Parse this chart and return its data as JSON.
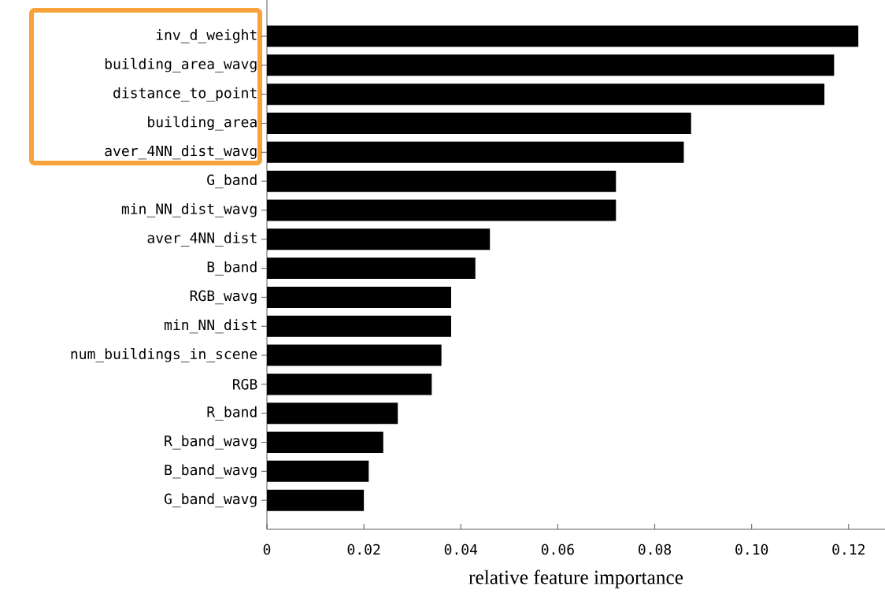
{
  "chart_data": {
    "type": "bar",
    "orientation": "horizontal",
    "xlabel": "relative feature importance",
    "categories": [
      "inv_d_weight",
      "building_area_wavg",
      "distance_to_point",
      "building_area",
      "aver_4NN_dist_wavg",
      "G_band",
      "min_NN_dist_wavg",
      "aver_4NN_dist",
      "B_band",
      "RGB_wavg",
      "min_NN_dist",
      "num_buildings_in_scene",
      "RGB",
      "R_band",
      "R_band_wavg",
      "B_band_wavg",
      "G_band_wavg"
    ],
    "values": [
      0.122,
      0.117,
      0.115,
      0.0875,
      0.086,
      0.072,
      0.072,
      0.046,
      0.043,
      0.038,
      0.038,
      0.036,
      0.034,
      0.027,
      0.024,
      0.021,
      0.02
    ],
    "color": "#000000",
    "xlim": [
      0,
      0.1275
    ],
    "xticks": [
      0,
      0.02,
      0.04,
      0.06,
      0.08,
      {
        "value": 0.1,
        "label": "0.10"
      },
      0.12
    ],
    "grid": false
  }
}
